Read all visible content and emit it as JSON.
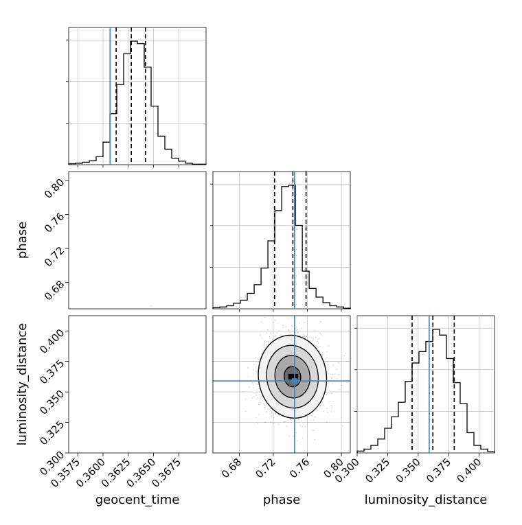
{
  "chart_data": {
    "type": "corner",
    "parameters": [
      "geocent_time",
      "phase",
      "luminosity_distance"
    ],
    "truths": {
      "geocent_time": 0.3607,
      "phase": 0.745,
      "luminosity_distance": 0.359
    },
    "truth_color": "#4682b4",
    "quantiles": {
      "geocent_time": [
        0.3613,
        0.3628,
        0.3642
      ],
      "phase": [
        0.7215,
        0.743,
        0.7585
      ],
      "luminosity_distance": [
        0.345,
        0.362,
        0.3795
      ]
    },
    "ranges": {
      "geocent_time": [
        0.3566,
        0.3702
      ],
      "phase": [
        0.649,
        0.8105
      ],
      "luminosity_distance": [
        0.3,
        0.4125
      ]
    },
    "ticks": {
      "geocent_time": {
        "values": [
          0.3575,
          0.36,
          0.3625,
          0.365,
          0.3675
        ],
        "labels": [
          "0.3575",
          "0.3600",
          "0.3625",
          "0.3650",
          "0.3675"
        ]
      },
      "phase": {
        "values": [
          0.68,
          0.72,
          0.76,
          0.8
        ],
        "labels": [
          "0.68",
          "0.72",
          "0.76",
          "0.80"
        ]
      },
      "luminosity_distance": {
        "values": [
          0.3,
          0.325,
          0.35,
          0.375,
          0.4
        ],
        "labels": [
          "0.300",
          "0.325",
          "0.350",
          "0.375",
          "0.400"
        ]
      }
    },
    "histograms": {
      "geocent_time": {
        "edges_start": 0.3566,
        "bin_width": 0.00068,
        "counts": [
          2,
          3,
          5,
          8,
          16,
          45,
          102,
          160,
          222,
          247,
          242,
          195,
          117,
          57,
          31,
          13,
          7,
          3,
          1,
          1
        ]
      },
      "phase": {
        "edges_start": 0.649,
        "bin_width": 0.0080833,
        "counts": [
          2,
          3,
          5,
          9,
          14,
          25,
          39,
          66,
          110,
          159,
          198,
          200,
          135,
          61,
          33,
          19,
          10,
          5,
          3,
          1
        ]
      },
      "luminosity_distance": {
        "edges_start": 0.3,
        "bin_width": 0.005625,
        "counts": [
          3,
          6,
          12,
          22,
          39,
          57,
          80,
          113,
          142,
          160,
          176,
          195,
          186,
          149,
          111,
          78,
          32,
          12,
          6,
          2
        ]
      }
    },
    "grid": true
  }
}
